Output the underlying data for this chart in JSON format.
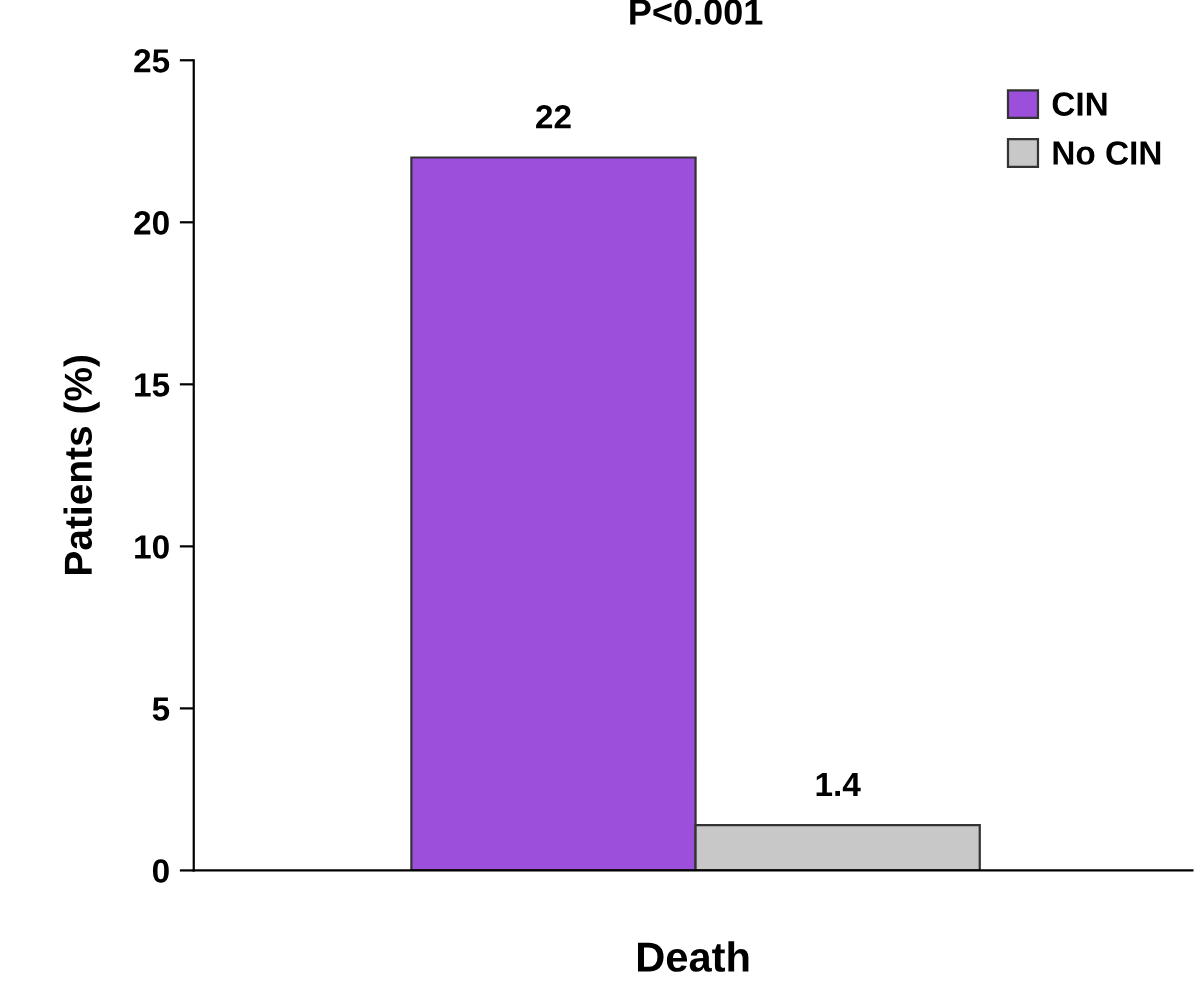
{
  "chart_data": {
    "type": "bar",
    "ylabel": "Patients (%)",
    "xlabel": "Death",
    "categories": [
      null
    ],
    "series": [
      {
        "name": "CIN",
        "color": "#9b4fdb",
        "values": [
          22
        ]
      },
      {
        "name": "No CIN",
        "color": "#c8c8c8",
        "values": [
          1.4
        ]
      }
    ],
    "ylim": [
      0,
      25
    ],
    "yticks": [
      0,
      5,
      10,
      15,
      20,
      25
    ],
    "data_labels": true,
    "grid": false,
    "legend": "top right",
    "annotations": [
      "P<0.001"
    ]
  }
}
